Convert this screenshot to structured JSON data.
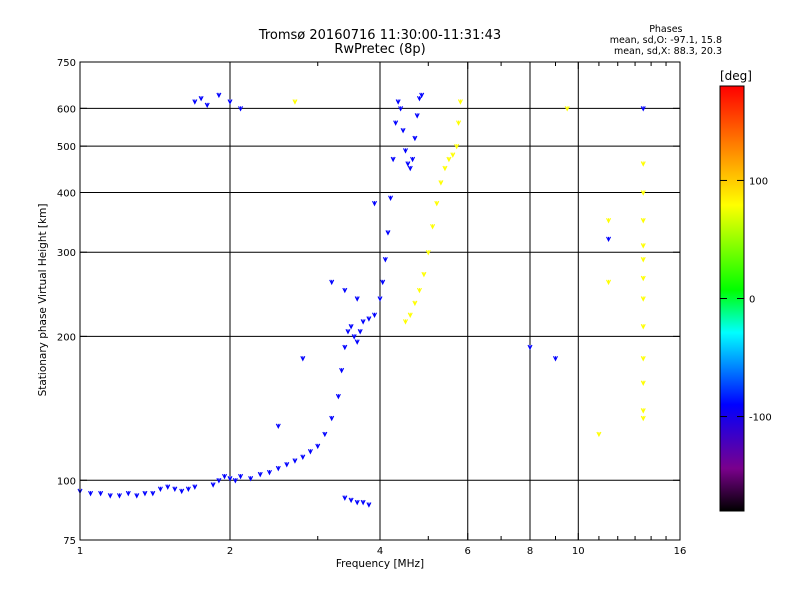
{
  "title_line1": "Tromsø 20160716 11:30:00-11:31:43",
  "title_line2": "RwPretec (8p)",
  "stats": {
    "header": "Phases",
    "line_o": "mean, sd,O: -97.1, 15.8",
    "line_x": "mean, sd,X:  88.3, 20.3"
  },
  "colorbar": {
    "unit_label": "[deg]",
    "ticks": [
      {
        "value": 100,
        "label": "100"
      },
      {
        "value": 0,
        "label": "0"
      },
      {
        "value": -100,
        "label": "-100"
      }
    ],
    "range": [
      -180,
      180
    ]
  },
  "chart_data": {
    "type": "scatter",
    "xlabel": "Frequency [MHz]",
    "ylabel": "Stationary phase Virtual Height [km]",
    "x_scale": "log",
    "y_scale": "log",
    "xlim": [
      1,
      16
    ],
    "ylim": [
      75,
      750
    ],
    "x_ticks": [
      {
        "value": 1,
        "label": "1"
      },
      {
        "value": 2,
        "label": "2"
      },
      {
        "value": 4,
        "label": "4"
      },
      {
        "value": 6,
        "label": "6"
      },
      {
        "value": 8,
        "label": "8"
      },
      {
        "value": 10,
        "label": "10"
      },
      {
        "value": 16,
        "label": "16"
      }
    ],
    "x_grid": [
      2,
      4,
      6,
      8,
      10
    ],
    "x_minor": [
      3,
      5,
      7,
      9,
      11,
      12,
      13,
      14,
      15
    ],
    "y_ticks": [
      {
        "value": 75,
        "label": "75"
      },
      {
        "value": 100,
        "label": "100"
      },
      {
        "value": 200,
        "label": "200"
      },
      {
        "value": 300,
        "label": "300"
      },
      {
        "value": 400,
        "label": "400"
      },
      {
        "value": 500,
        "label": "500"
      },
      {
        "value": 600,
        "label": "600"
      },
      {
        "value": 750,
        "label": "750"
      }
    ],
    "y_grid": [
      100,
      200,
      300,
      400,
      500,
      600
    ],
    "grid": true,
    "series": [
      {
        "name": "O",
        "phase": -97,
        "points": [
          [
            1.0,
            95
          ],
          [
            1.05,
            94
          ],
          [
            1.1,
            94
          ],
          [
            1.15,
            93
          ],
          [
            1.2,
            93
          ],
          [
            1.25,
            94
          ],
          [
            1.3,
            93
          ],
          [
            1.35,
            94
          ],
          [
            1.4,
            94
          ],
          [
            1.45,
            96
          ],
          [
            1.5,
            97
          ],
          [
            1.55,
            96
          ],
          [
            1.6,
            95
          ],
          [
            1.65,
            96
          ],
          [
            1.7,
            97
          ],
          [
            1.85,
            98
          ],
          [
            1.9,
            100
          ],
          [
            1.95,
            102
          ],
          [
            2.0,
            101
          ],
          [
            2.05,
            100
          ],
          [
            2.1,
            102
          ],
          [
            2.2,
            101
          ],
          [
            2.3,
            103
          ],
          [
            2.4,
            104
          ],
          [
            2.5,
            106
          ],
          [
            2.6,
            108
          ],
          [
            2.7,
            110
          ],
          [
            2.8,
            112
          ],
          [
            2.9,
            115
          ],
          [
            3.0,
            118
          ],
          [
            3.1,
            125
          ],
          [
            3.2,
            135
          ],
          [
            3.3,
            150
          ],
          [
            3.35,
            170
          ],
          [
            3.4,
            190
          ],
          [
            3.45,
            205
          ],
          [
            3.5,
            210
          ],
          [
            3.55,
            200
          ],
          [
            3.6,
            195
          ],
          [
            3.65,
            205
          ],
          [
            3.7,
            215
          ],
          [
            3.8,
            218
          ],
          [
            3.9,
            222
          ],
          [
            4.0,
            240
          ],
          [
            4.05,
            260
          ],
          [
            4.1,
            290
          ],
          [
            4.15,
            330
          ],
          [
            4.2,
            390
          ],
          [
            4.25,
            470
          ],
          [
            4.3,
            560
          ],
          [
            4.35,
            620
          ],
          [
            4.4,
            600
          ],
          [
            4.45,
            540
          ],
          [
            4.5,
            490
          ],
          [
            4.55,
            460
          ],
          [
            4.6,
            450
          ],
          [
            4.65,
            470
          ],
          [
            4.7,
            520
          ],
          [
            4.75,
            580
          ],
          [
            4.8,
            630
          ],
          [
            4.85,
            640
          ],
          [
            3.4,
            92
          ],
          [
            3.5,
            91
          ],
          [
            3.6,
            90
          ],
          [
            3.7,
            90
          ],
          [
            3.8,
            89
          ],
          [
            1.7,
            620
          ],
          [
            1.75,
            630
          ],
          [
            1.8,
            610
          ],
          [
            1.9,
            640
          ],
          [
            2.0,
            620
          ],
          [
            2.1,
            600
          ],
          [
            2.8,
            180
          ],
          [
            2.5,
            130
          ],
          [
            3.2,
            260
          ],
          [
            3.4,
            250
          ],
          [
            3.6,
            240
          ],
          [
            3.9,
            380
          ],
          [
            8.0,
            190
          ],
          [
            9.0,
            180
          ],
          [
            13.5,
            600
          ],
          [
            11.5,
            320
          ]
        ]
      },
      {
        "name": "X",
        "phase": 88,
        "points": [
          [
            4.5,
            215
          ],
          [
            4.6,
            222
          ],
          [
            4.7,
            235
          ],
          [
            4.8,
            250
          ],
          [
            4.9,
            270
          ],
          [
            5.0,
            300
          ],
          [
            5.1,
            340
          ],
          [
            5.2,
            380
          ],
          [
            5.3,
            420
          ],
          [
            5.4,
            450
          ],
          [
            5.5,
            470
          ],
          [
            5.6,
            480
          ],
          [
            5.7,
            500
          ],
          [
            5.75,
            560
          ],
          [
            5.8,
            620
          ],
          [
            13.5,
            460
          ],
          [
            13.5,
            400
          ],
          [
            13.5,
            350
          ],
          [
            13.5,
            310
          ],
          [
            13.5,
            290
          ],
          [
            13.5,
            265
          ],
          [
            13.5,
            240
          ],
          [
            13.5,
            210
          ],
          [
            13.5,
            180
          ],
          [
            13.5,
            160
          ],
          [
            13.5,
            140
          ],
          [
            13.5,
            135
          ],
          [
            11.5,
            350
          ],
          [
            11.5,
            260
          ],
          [
            11.0,
            125
          ],
          [
            2.7,
            620
          ],
          [
            9.5,
            600
          ]
        ]
      }
    ]
  }
}
